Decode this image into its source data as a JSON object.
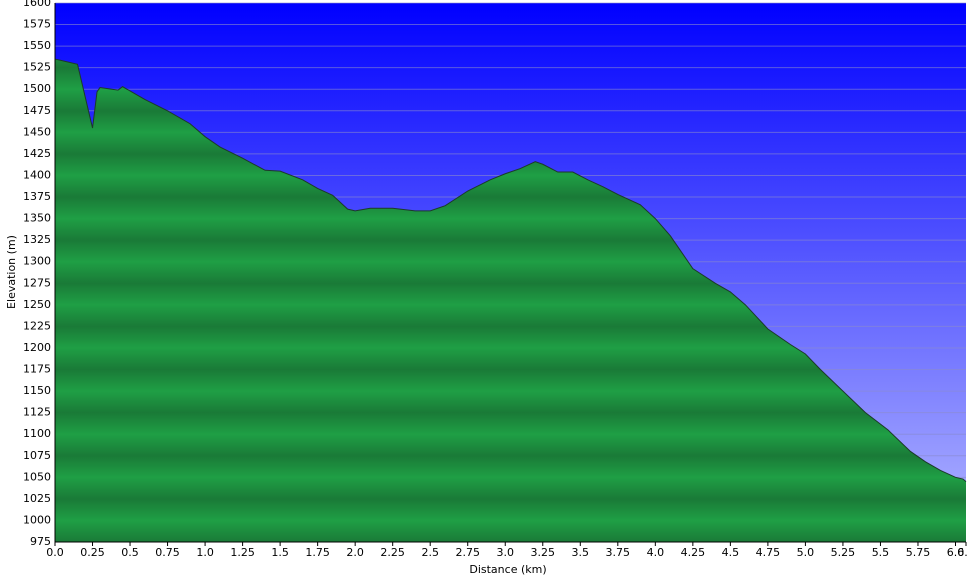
{
  "chart_data": {
    "type": "area",
    "x_label": "Distance   (km)",
    "y_label": "Elevation (m)",
    "color": "#1f9f45",
    "grid": true,
    "xlim": [
      0,
      6.07
    ],
    "ylim": [
      975,
      1600
    ],
    "xticks": [
      {
        "value": 0,
        "label": "0.0"
      },
      0.25,
      0.5,
      0.75,
      {
        "value": 1,
        "label": "1.0"
      },
      1.25,
      1.5,
      1.75,
      {
        "value": 2,
        "label": "2.0"
      },
      2.25,
      2.5,
      2.75,
      {
        "value": 3,
        "label": "3.0"
      },
      3.25,
      3.5,
      3.75,
      {
        "value": 4,
        "label": "4.0"
      },
      4.25,
      4.5,
      4.75,
      {
        "value": 5,
        "label": "5.0"
      },
      5.25,
      5.5,
      5.75,
      {
        "value": 6,
        "label": "6.0"
      },
      {
        "value": 6.07,
        "label": "6.1"
      }
    ],
    "yticks": [
      975,
      1000,
      1025,
      1050,
      1075,
      1100,
      1125,
      1150,
      1175,
      1200,
      1225,
      1250,
      1275,
      1300,
      1325,
      1350,
      1375,
      1400,
      1425,
      1450,
      1475,
      1500,
      1525,
      1550,
      1575,
      1600
    ],
    "x": [
      0,
      0.05,
      0.15,
      0.25,
      0.28,
      0.3,
      0.42,
      0.45,
      0.5,
      0.6,
      0.75,
      0.9,
      1.0,
      1.1,
      1.25,
      1.4,
      1.5,
      1.65,
      1.75,
      1.85,
      1.95,
      2.0,
      2.1,
      2.25,
      2.4,
      2.5,
      2.6,
      2.75,
      2.9,
      3.0,
      3.1,
      3.2,
      3.25,
      3.35,
      3.45,
      3.55,
      3.65,
      3.75,
      3.9,
      4.0,
      4.1,
      4.25,
      4.4,
      4.5,
      4.6,
      4.75,
      4.9,
      5.0,
      5.1,
      5.25,
      5.4,
      5.55,
      5.7,
      5.8,
      5.9,
      6.0,
      6.05,
      6.07
    ],
    "y": [
      1535,
      1533,
      1529,
      1455,
      1497,
      1502,
      1499,
      1503,
      1498,
      1488,
      1475,
      1460,
      1445,
      1433,
      1420,
      1406,
      1405,
      1395,
      1385,
      1377,
      1361,
      1359,
      1362,
      1362,
      1359,
      1359,
      1365,
      1382,
      1395,
      1402,
      1408,
      1416,
      1413,
      1404,
      1404,
      1395,
      1387,
      1378,
      1366,
      1350,
      1330,
      1292,
      1275,
      1265,
      1250,
      1222,
      1204,
      1193,
      1175,
      1150,
      1125,
      1105,
      1080,
      1068,
      1058,
      1050,
      1048,
      1045
    ]
  }
}
